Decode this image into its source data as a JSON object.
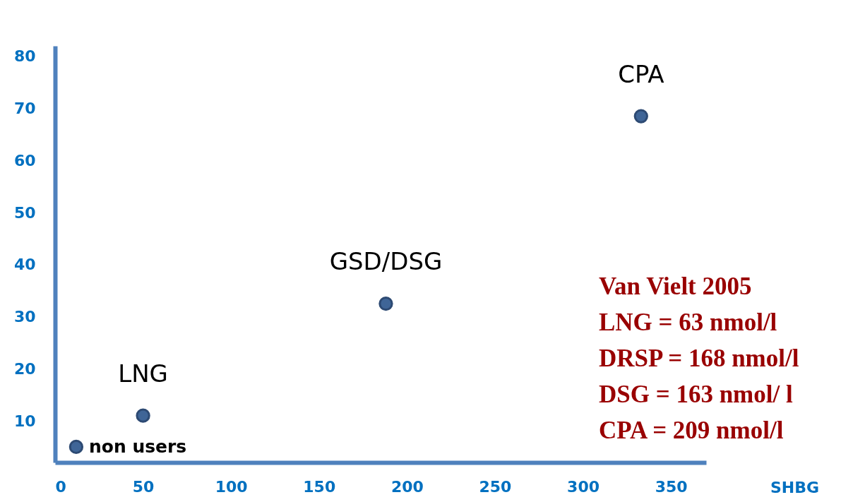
{
  "chart_data": {
    "type": "scatter",
    "xlabel": "SHBG",
    "x": [
      12,
      50,
      188,
      333
    ],
    "values": [
      5,
      11,
      32.5,
      68.5
    ],
    "color": "#3f6597",
    "marker": "circle",
    "xlim": [
      0,
      370
    ],
    "xticks": [
      0,
      50,
      100,
      150,
      200,
      250,
      300,
      350
    ],
    "ylim": [
      2,
      82
    ],
    "yticks": [
      10,
      20,
      30,
      40,
      50,
      60,
      70,
      80
    ],
    "grid": false,
    "annotations": [
      {
        "text": "non users",
        "x": 12,
        "y": 5
      },
      {
        "text": "LNG",
        "x": 50,
        "y": 11
      },
      {
        "text": "GSD/DSG",
        "x": 188,
        "y": 32.5
      },
      {
        "text": "CPA",
        "x": 333,
        "y": 68.5
      },
      "Van Vielt 2005",
      "LNG = 63 nmol/l",
      "DRSP = 168 nmol/l",
      "DSG = 163 nmol/ l",
      "CPA = 209 nmol/l"
    ]
  }
}
